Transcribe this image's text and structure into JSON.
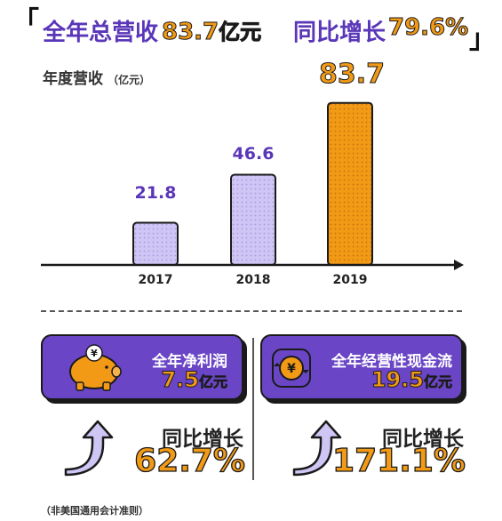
{
  "header": {
    "revenue_label": "全年总营收",
    "revenue_value": "83.7",
    "revenue_unit": "亿元",
    "growth_label": "同比增长",
    "growth_value": "79.6%"
  },
  "revenue_section": {
    "title": "年度营收",
    "unit": "（亿元）"
  },
  "chart_data": {
    "type": "bar",
    "title": "年度营收",
    "ylabel": "（亿元）",
    "categories": [
      "2017",
      "2018",
      "2019"
    ],
    "values": [
      21.8,
      46.6,
      83.7
    ],
    "value_labels": [
      "21.8",
      "46.6",
      "83.7"
    ],
    "ylim": [
      0,
      90
    ],
    "grid": false,
    "colors": {
      "normal": "#cfc6f5",
      "highlight": "#f29a16",
      "dots_normal": "#a89ae0",
      "dots_highlight": "#c5720c",
      "outline": "#1a1a1a"
    }
  },
  "metrics": [
    {
      "icon": "piggy-bank-icon",
      "label": "全年净利润",
      "value": "7.5",
      "unit": "亿元",
      "growth_label": "同比增长",
      "growth_value": "62.7%"
    },
    {
      "icon": "yuan-cashflow-icon",
      "label": "全年经营性现金流",
      "value": "19.5",
      "unit": "亿元",
      "growth_label": "同比增长",
      "growth_value": "171.1%"
    }
  ],
  "footnote": "（非美国通用会计准则）",
  "colors": {
    "purple": "#6a45c6",
    "orange": "#f29a16",
    "lavender": "#cfc6f5"
  }
}
